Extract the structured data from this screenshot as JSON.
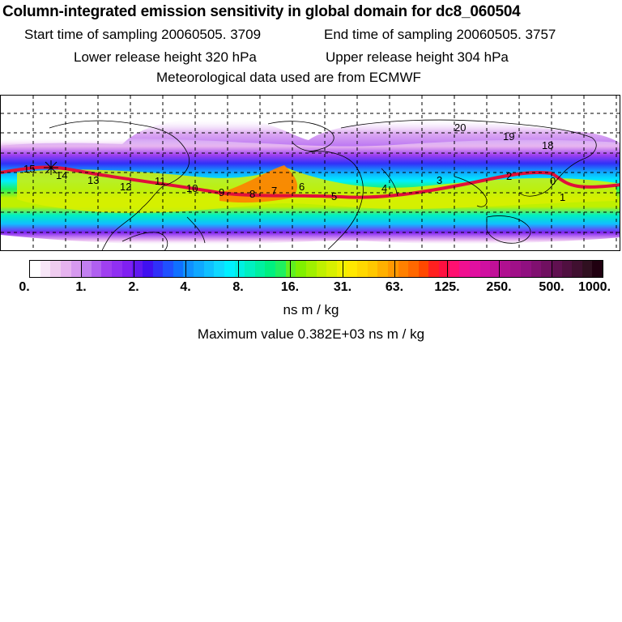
{
  "header": {
    "title": "Column-integrated emission sensitivity in global domain for dc8_060504",
    "start_time": "Start time of sampling 20060505.  3709",
    "end_time": "End time of sampling 20060505.  3757",
    "lower_release": "Lower release height  320 hPa",
    "upper_release": "Upper release height  304 hPa",
    "met_data": "Meteorological data used are from ECMWF"
  },
  "map": {
    "trajectory_labels": [
      "15",
      "14",
      "13",
      "12",
      "11",
      "10",
      "9",
      "8",
      "7",
      "6",
      "5",
      "4",
      "3",
      "2",
      "1",
      "0",
      "19",
      "18",
      "20"
    ],
    "colors": {
      "background": "#ffffff",
      "coastline": "#000000",
      "grid": "#000000",
      "trajectory": "#e0103a"
    }
  },
  "colorbar": {
    "tick_labels": [
      "0.",
      "1.",
      "2.",
      "4.",
      "8.",
      "16.",
      "31.",
      "63.",
      "125.",
      "250.",
      "500.",
      "1000."
    ],
    "colors": [
      "#ffffff",
      "#f7e6f7",
      "#efccef",
      "#e6b3ef",
      "#d699ef",
      "#c27ff0",
      "#b060f0",
      "#a040f0",
      "#9030f2",
      "#8020f2",
      "#6018f0",
      "#4010f0",
      "#3030f8",
      "#2050ff",
      "#1070ff",
      "#1090ff",
      "#10a8ff",
      "#10c0ff",
      "#10d8ff",
      "#00f0ff",
      "#00f0e0",
      "#00f0c0",
      "#00f0a0",
      "#00f080",
      "#20f060",
      "#60f020",
      "#80f000",
      "#a0f000",
      "#c0f000",
      "#d8f000",
      "#f0f000",
      "#ffe800",
      "#ffd800",
      "#ffc800",
      "#ffb000",
      "#ff9800",
      "#ff8000",
      "#ff6800",
      "#ff4800",
      "#ff2020",
      "#ff1040",
      "#ff1070",
      "#f01090",
      "#e010a0",
      "#d010a0",
      "#c01098",
      "#b01090",
      "#a01088",
      "#901080",
      "#801070",
      "#701060",
      "#601050",
      "#501040",
      "#401030",
      "#301020",
      "#200010"
    ],
    "units": "ns m / kg",
    "max_value": "Maximum value  0.382E+03 ns m / kg"
  }
}
